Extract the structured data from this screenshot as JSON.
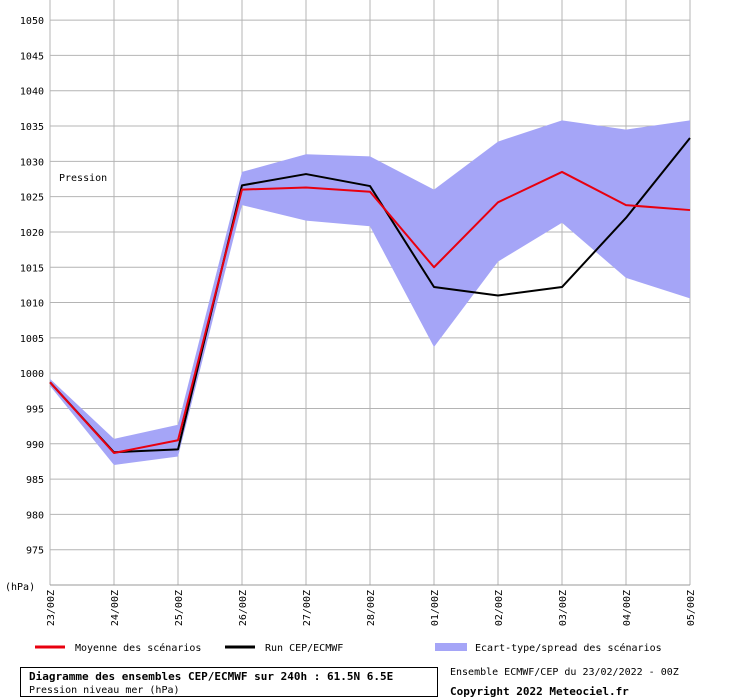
{
  "chart_data": {
    "type": "line",
    "annotation": "Pression",
    "unit_label": "(hPa)",
    "categories": [
      "23/00Z",
      "24/00Z",
      "25/00Z",
      "26/00Z",
      "27/00Z",
      "28/00Z",
      "01/00Z",
      "02/00Z",
      "03/00Z",
      "04/00Z",
      "05/00Z"
    ],
    "ylim": [
      970,
      1052
    ],
    "yticks": [
      975,
      980,
      985,
      990,
      995,
      1000,
      1005,
      1010,
      1015,
      1020,
      1025,
      1030,
      1035,
      1040,
      1045,
      1050
    ],
    "grid": true,
    "series": [
      {
        "name": "Moyenne des scénarios",
        "kind": "line",
        "color": "#e8000f",
        "values": [
          998.7,
          988.7,
          990.5,
          1026.0,
          1026.3,
          1025.7,
          1015.0,
          1024.2,
          1028.5,
          1023.8,
          1023.1
        ]
      },
      {
        "name": "Run CEP/ECMWF",
        "kind": "line",
        "color": "#000000",
        "values": [
          998.7,
          988.8,
          989.2,
          1026.6,
          1028.2,
          1026.5,
          1012.2,
          1011.0,
          1012.2,
          1022.0,
          1033.3
        ]
      },
      {
        "name": "Ecart-type/spread des scénarios",
        "kind": "band",
        "color": "#a5a5f7",
        "upper": [
          999.2,
          990.7,
          992.7,
          1028.5,
          1031.0,
          1030.7,
          1026.0,
          1032.8,
          1035.8,
          1034.5,
          1035.8
        ],
        "lower": [
          998.2,
          987.0,
          988.2,
          1023.8,
          1021.6,
          1020.8,
          1003.7,
          1015.8,
          1021.3,
          1013.5,
          1010.6
        ]
      }
    ],
    "legend_position": "bottom"
  },
  "footer": {
    "title": "Diagramme des ensembles CEP/ECMWF sur 240h : 61.5N 6.5E",
    "subtitle": "Pression niveau mer (hPa)",
    "run": "Ensemble ECMWF/CEP du 23/02/2022 - 00Z",
    "copyright": "Copyright 2022 Meteociel.fr"
  }
}
